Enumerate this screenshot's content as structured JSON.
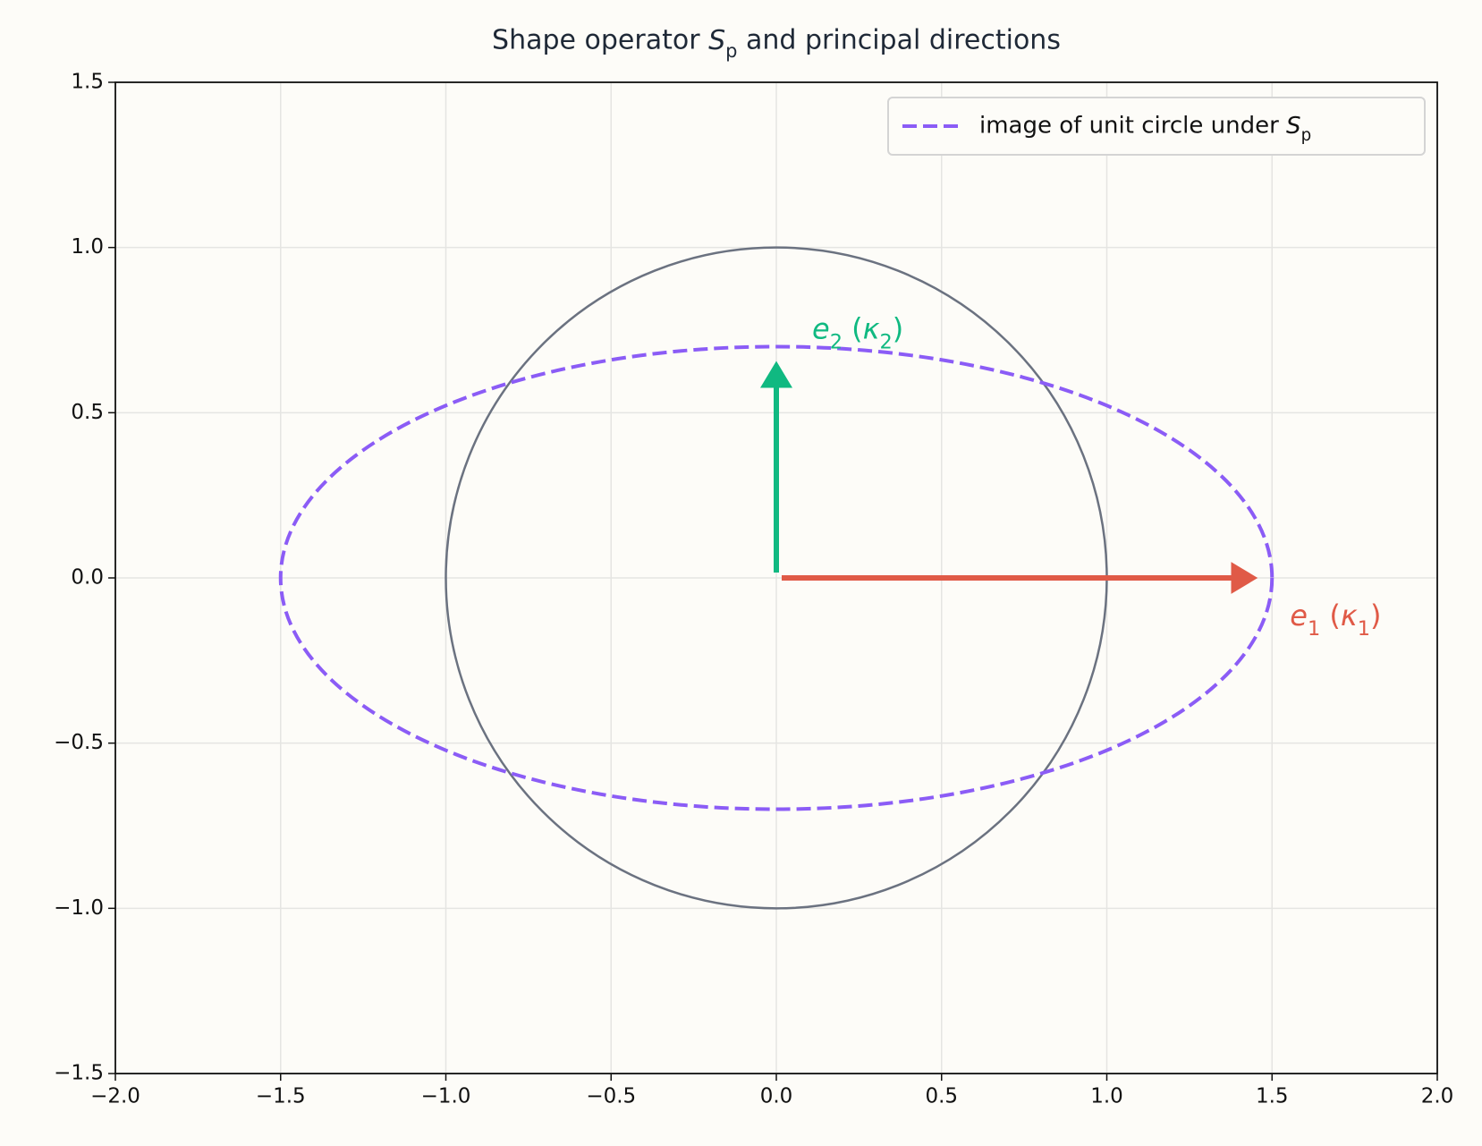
{
  "chart_data": {
    "type": "vector",
    "title": "Shape operator S_p and principal directions",
    "xlim": [
      -2,
      2
    ],
    "ylim": [
      -1.5,
      1.5
    ],
    "xticks": [
      {
        "value": -2.0,
        "label": "−2.0"
      },
      {
        "value": -1.5,
        "label": "−1.5"
      },
      {
        "value": -1.0,
        "label": "−1.0"
      },
      {
        "value": -0.5,
        "label": "−0.5"
      },
      {
        "value": 0,
        "label": "0.0"
      },
      0.5,
      {
        "value": 1.0,
        "label": "1.0"
      },
      1.5,
      {
        "value": 2.0,
        "label": "2.0"
      }
    ],
    "yticks": [
      {
        "value": -1.5,
        "label": "−1.5"
      },
      {
        "value": -1.0,
        "label": "−1.0"
      },
      {
        "value": -0.5,
        "label": "−0.5"
      },
      {
        "value": 0,
        "label": "0.0"
      },
      0.5,
      {
        "value": 1.0,
        "label": "1.0"
      },
      1.5
    ],
    "grid": true,
    "legend": "upper-right",
    "circle": {
      "radius": 1,
      "color": "#6b7280"
    },
    "series": [
      {
        "name": "image of unit circle under S_p",
        "color": "#8b5cf6",
        "semi_axes": [
          1.5,
          0.7
        ]
      }
    ],
    "vectors": [
      {
        "label": "e_1 (κ_1)",
        "color": "#e05a47",
        "x": 1.5,
        "y": 0
      },
      {
        "label": "e_2 (κ_2)",
        "color": "#10b981",
        "x": 0,
        "y": 0.7
      }
    ]
  }
}
